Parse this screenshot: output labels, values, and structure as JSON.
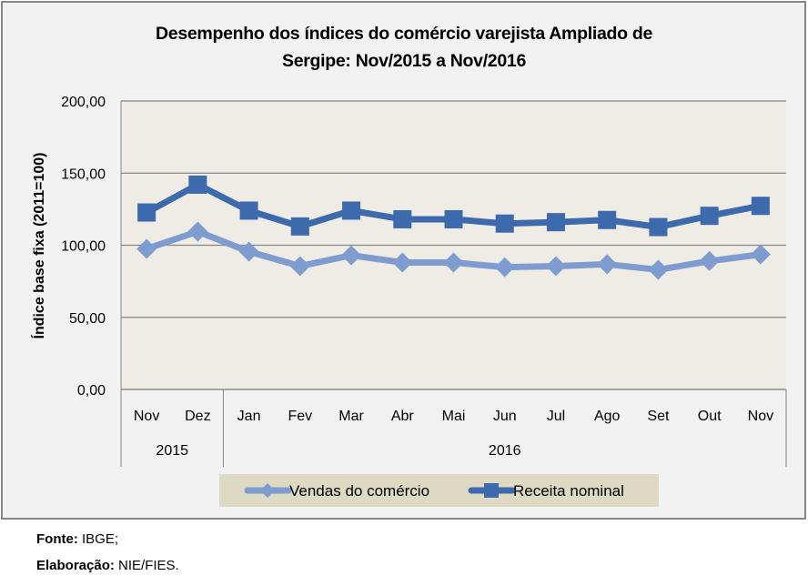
{
  "chart_data": {
    "type": "line",
    "title_line1": "Desempenho dos índices do comércio varejista Ampliado de",
    "title_line2": "Sergipe: Nov/2015 a Nov/2016",
    "xlabel": "",
    "ylabel": "Índice base fixa (2011=100)",
    "ylim": [
      0,
      200
    ],
    "yticks": [
      0,
      50,
      100,
      150,
      200
    ],
    "ytick_labels": [
      "0,00",
      "50,00",
      "100,00",
      "150,00",
      "200,00"
    ],
    "grid": true,
    "categories": [
      "Nov",
      "Dez",
      "Jan",
      "Fev",
      "Mar",
      "Abr",
      "Mai",
      "Jun",
      "Jul",
      "Ago",
      "Set",
      "Out",
      "Nov"
    ],
    "groups": [
      {
        "label": "2015",
        "count": 2
      },
      {
        "label": "2016",
        "count": 11
      }
    ],
    "series": [
      {
        "name": "Vendas do comércio",
        "color": "#7f9cd0",
        "marker": "diamond",
        "values": [
          97.5,
          109.5,
          95.6,
          85.5,
          93.0,
          88.0,
          88.0,
          84.8,
          85.5,
          86.8,
          83.0,
          89.0,
          93.6
        ]
      },
      {
        "name": "Receita nominal",
        "color": "#3d6aad",
        "marker": "square",
        "values": [
          122.7,
          142.0,
          124.0,
          113.0,
          124.0,
          118.0,
          118.0,
          115.0,
          116.0,
          117.5,
          112.6,
          120.4,
          127.3
        ]
      }
    ],
    "legend_position": "bottom"
  },
  "colors": {
    "plot_background": "#eeece4",
    "legend_background": "#ddd9c3",
    "gridline": "#868686"
  },
  "footer": {
    "source_label": "Fonte:",
    "source_value": " IBGE;",
    "credit_label": "Elaboração:",
    "credit_value": " NIE/FIES."
  }
}
